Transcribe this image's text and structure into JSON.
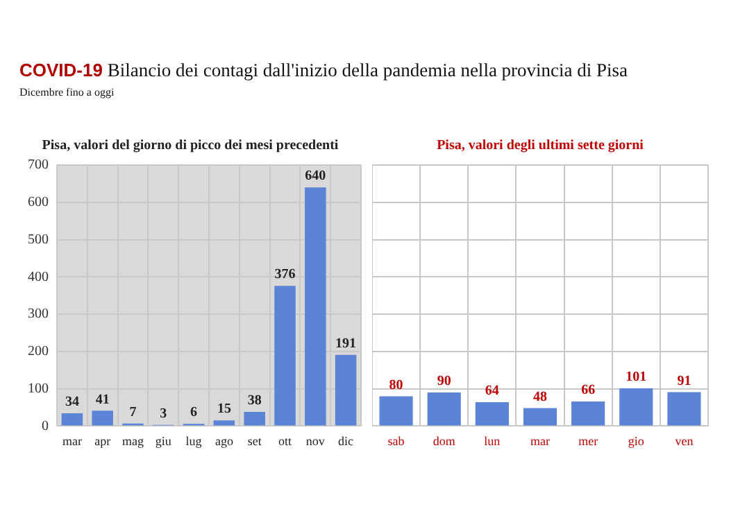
{
  "chart_data": [
    {
      "type": "bar",
      "title": "Pisa, valori del giorno di picco dei mesi precedenti",
      "annotations": [
        "COVID-19 Bilancio dei contagi dall'inizio della pandemia nella provincia di Pisa",
        "Dicembre fino a oggi"
      ],
      "categories": [
        "mar",
        "apr",
        "mag",
        "giu",
        "lug",
        "ago",
        "set",
        "ott",
        "nov",
        "dic"
      ],
      "values": [
        34,
        41,
        7,
        3,
        6,
        15,
        38,
        376,
        640,
        191
      ],
      "color": "#5b84d6",
      "ylim": [
        0,
        700
      ],
      "yticks": [
        0,
        100,
        200,
        300,
        400,
        500,
        600,
        700
      ],
      "grid": true,
      "data_labels": true,
      "legend": false
    },
    {
      "type": "bar",
      "title": "Pisa, valori degli ultimi sette giorni",
      "categories": [
        "sab",
        "dom",
        "lun",
        "mar",
        "mer",
        "gio",
        "ven"
      ],
      "values": [
        80,
        90,
        64,
        48,
        66,
        101,
        91
      ],
      "color": "#5b84d6",
      "ylim": [
        0,
        700
      ],
      "yticks": [
        {
          "value": 0,
          "label": null
        },
        {
          "value": 100,
          "label": null
        },
        {
          "value": 200,
          "label": null
        },
        {
          "value": 300,
          "label": null
        },
        {
          "value": 400,
          "label": null
        },
        {
          "value": 500,
          "label": null
        },
        {
          "value": 600,
          "label": null
        },
        {
          "value": 700,
          "label": null
        }
      ],
      "grid": true,
      "tick_labels": "x",
      "data_labels": true,
      "legend": false
    }
  ]
}
